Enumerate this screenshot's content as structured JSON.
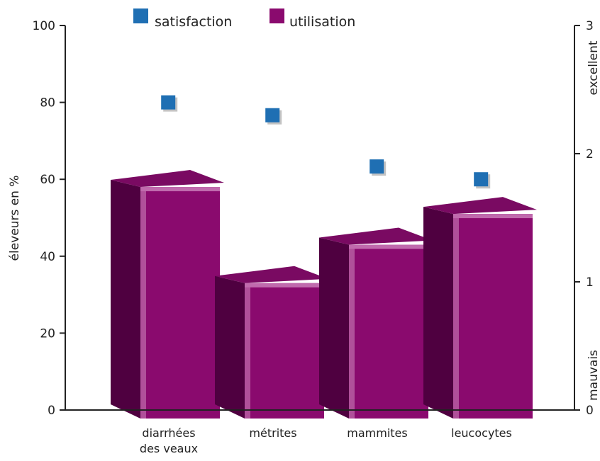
{
  "chart_data": {
    "type": "bar",
    "categories": [
      [
        "diarrhées",
        "des veaux"
      ],
      [
        "métrites"
      ],
      [
        "mammites"
      ],
      [
        "leucocytes"
      ]
    ],
    "series": [
      {
        "name": "utilisation",
        "axis": "left",
        "values": [
          58,
          33,
          43,
          51
        ],
        "color": "#8a0a6e"
      },
      {
        "name": "satisfaction",
        "axis": "right",
        "values": [
          2.4,
          2.3,
          1.9,
          1.8
        ],
        "color": "#1f6fb3"
      }
    ],
    "y_left": {
      "label": "éleveurs en %",
      "range": [
        0,
        100
      ],
      "ticks": [
        "0",
        "20",
        "40",
        "60",
        "80",
        "100"
      ]
    },
    "y_right": {
      "range": [
        0,
        3
      ],
      "ticks": [
        "0",
        "1",
        "2",
        "3"
      ],
      "label_top": "excellent",
      "label_bottom": "mauvais"
    },
    "legend": {
      "placement": "top",
      "items": [
        "satisfaction",
        "utilisation"
      ]
    },
    "bar_style": "3d",
    "grid": false
  }
}
